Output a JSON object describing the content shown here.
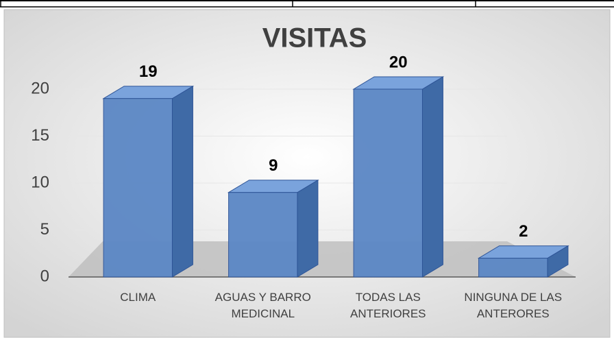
{
  "chart_data": {
    "type": "bar",
    "title": "VISITAS",
    "categories": [
      "CLIMA",
      "AGUAS Y BARRO MEDICINAL",
      "TODAS LAS ANTERIORES",
      "NINGUNA DE LAS ANTERORES"
    ],
    "values": [
      19,
      9,
      20,
      2
    ],
    "color": "#5b87c5",
    "ylim": [
      0,
      20
    ],
    "yticks": [
      0,
      5,
      10,
      15,
      20
    ],
    "grid": true
  }
}
